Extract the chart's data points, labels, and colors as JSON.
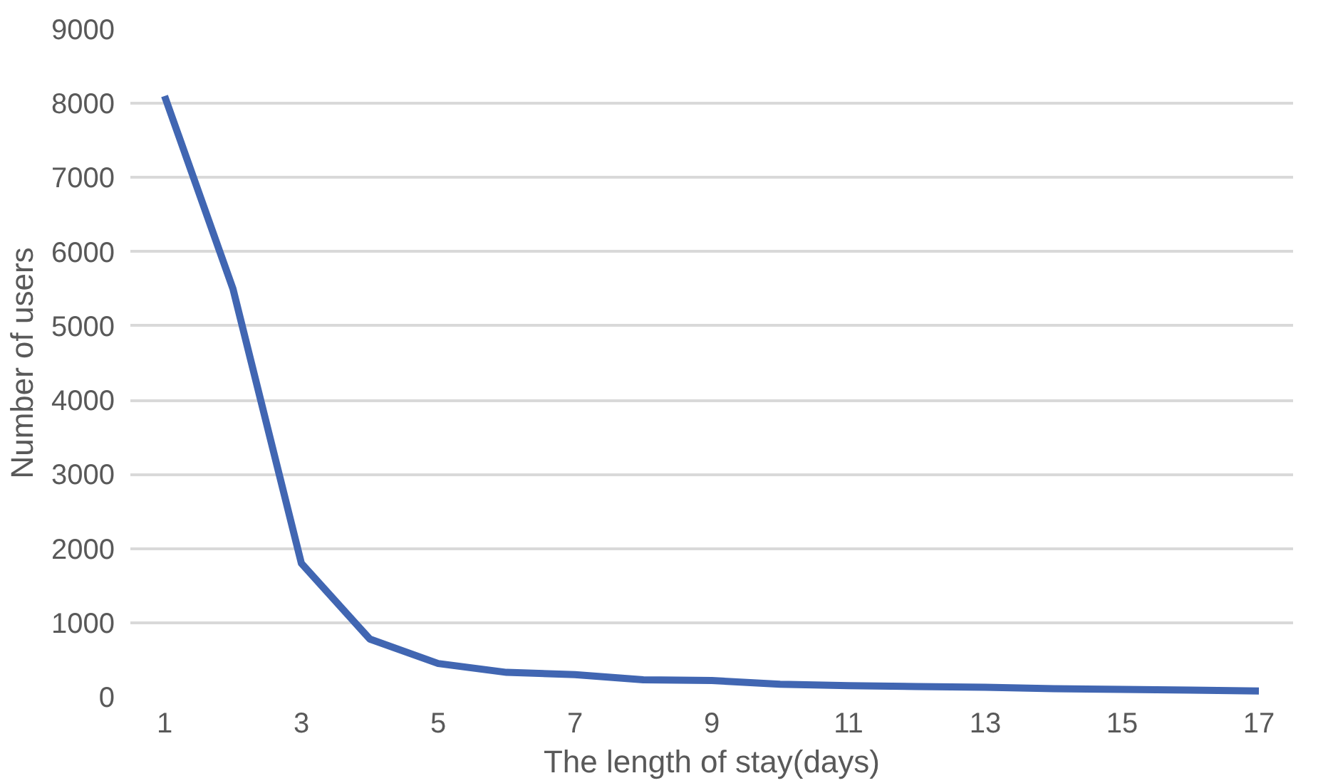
{
  "chart_data": {
    "type": "line",
    "xlabel": "The length of stay(days)",
    "ylabel": "Number of users",
    "x": [
      1,
      2,
      3,
      4,
      5,
      6,
      7,
      8,
      9,
      10,
      11,
      12,
      13,
      14,
      15,
      16,
      17
    ],
    "series": [
      {
        "color": "#4166b2",
        "values": [
          8100,
          5500,
          1800,
          780,
          450,
          330,
          300,
          230,
          220,
          170,
          150,
          140,
          130,
          110,
          100,
          90,
          80
        ]
      }
    ],
    "xlim": [
      0.5,
      17.5
    ],
    "xticks": [
      1,
      3,
      5,
      7,
      9,
      11,
      13,
      15,
      17
    ],
    "ylim": [
      0,
      9000
    ],
    "yticks": [
      0,
      1000,
      2000,
      3000,
      4000,
      5000,
      6000,
      7000,
      8000,
      9000
    ],
    "grid": "y",
    "marker": "none",
    "line_style": "solid"
  }
}
